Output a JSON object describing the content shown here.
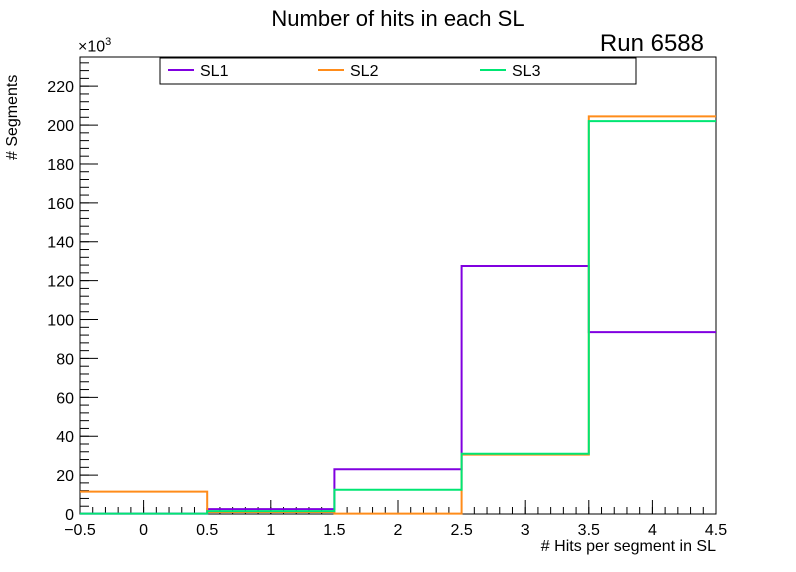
{
  "chart_data": {
    "type": "step-histogram",
    "title": "Number of hits in each SL",
    "annotation": "Run 6588",
    "xlabel": "# Hits per segment in SL",
    "ylabel": "# Segments",
    "y_multiplier_base": "×10",
    "y_multiplier_exp": "3",
    "xlim": [
      -0.5,
      4.5
    ],
    "ylim": [
      0,
      235
    ],
    "x_ticks": [
      -0.5,
      0,
      0.5,
      1,
      1.5,
      2,
      2.5,
      3,
      3.5,
      4,
      4.5
    ],
    "x_tick_labels": [
      "−0.5",
      "0",
      "0.5",
      "1",
      "1.5",
      "2",
      "2.5",
      "3",
      "3.5",
      "4",
      "4.5"
    ],
    "y_ticks": [
      0,
      20,
      40,
      60,
      80,
      100,
      120,
      140,
      160,
      180,
      200,
      220
    ],
    "bin_edges": [
      -0.5,
      0.5,
      1.5,
      2.5,
      3.5,
      4.5
    ],
    "series": [
      {
        "name": "SL1",
        "color": "#8000e0",
        "values": [
          0.2,
          2.5,
          23,
          127.5,
          93.5
        ]
      },
      {
        "name": "SL2",
        "color": "#ff8c1a",
        "values": [
          11.5,
          1.0,
          0.2,
          30.5,
          204.5
        ]
      },
      {
        "name": "SL3",
        "color": "#00e673",
        "values": [
          0.2,
          1.5,
          12.5,
          31,
          202
        ]
      }
    ],
    "legend_position": "top",
    "grid": false
  }
}
